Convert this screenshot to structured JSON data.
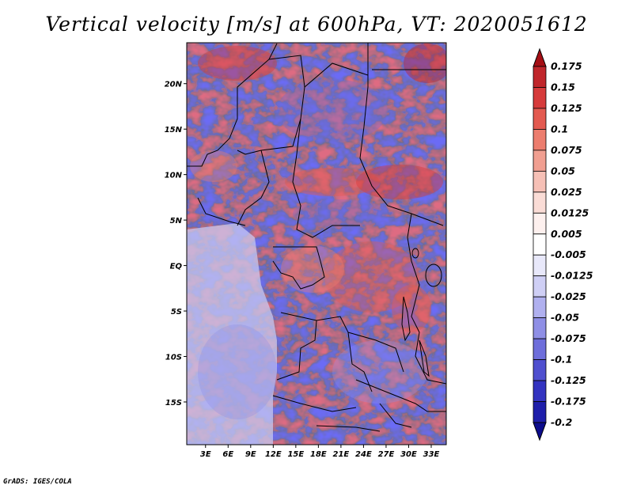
{
  "title": "Vertical velocity [m/s] at 600hPa, VT: 2020051612",
  "credit": "GrADS: IGES/COLA",
  "map": {
    "lon_ticks": [
      "3E",
      "6E",
      "9E",
      "12E",
      "15E",
      "18E",
      "21E",
      "24E",
      "27E",
      "30E",
      "33E"
    ],
    "lat_ticks": [
      "20N",
      "15N",
      "10N",
      "5N",
      "EQ",
      "5S",
      "10S",
      "15S"
    ],
    "lon_values": [
      3,
      6,
      9,
      12,
      15,
      18,
      21,
      24,
      27,
      30,
      33
    ],
    "lat_values": [
      20,
      15,
      10,
      5,
      0,
      -5,
      -10,
      -15
    ],
    "lon_range": [
      0.5,
      35
    ],
    "lat_range": [
      -19.7,
      24.5
    ]
  },
  "colorbar": {
    "labels": [
      "0.175",
      "0.15",
      "0.125",
      "0.1",
      "0.075",
      "0.05",
      "0.025",
      "0.0125",
      "0.005",
      "-0.005",
      "-0.0125",
      "-0.025",
      "-0.05",
      "-0.075",
      "-0.1",
      "-0.125",
      "-0.175",
      "-0.2"
    ],
    "colors": [
      "#a50f15",
      "#c0262b",
      "#d63b3b",
      "#e35a50",
      "#ec7d6e",
      "#f19f91",
      "#f6c0b6",
      "#fadcd6",
      "#fdf0ee",
      "#ffffff",
      "#e8e8fa",
      "#cfcff5",
      "#b0b0ef",
      "#8f8fe6",
      "#6e6edb",
      "#4f4fcf",
      "#3333c0",
      "#1e1eaa",
      "#0c0c8c"
    ]
  },
  "legend_colors": {
    "positive": "#e35a50",
    "negative": "#6e6edb",
    "neutral": "#ffffff",
    "border": "#000000"
  }
}
